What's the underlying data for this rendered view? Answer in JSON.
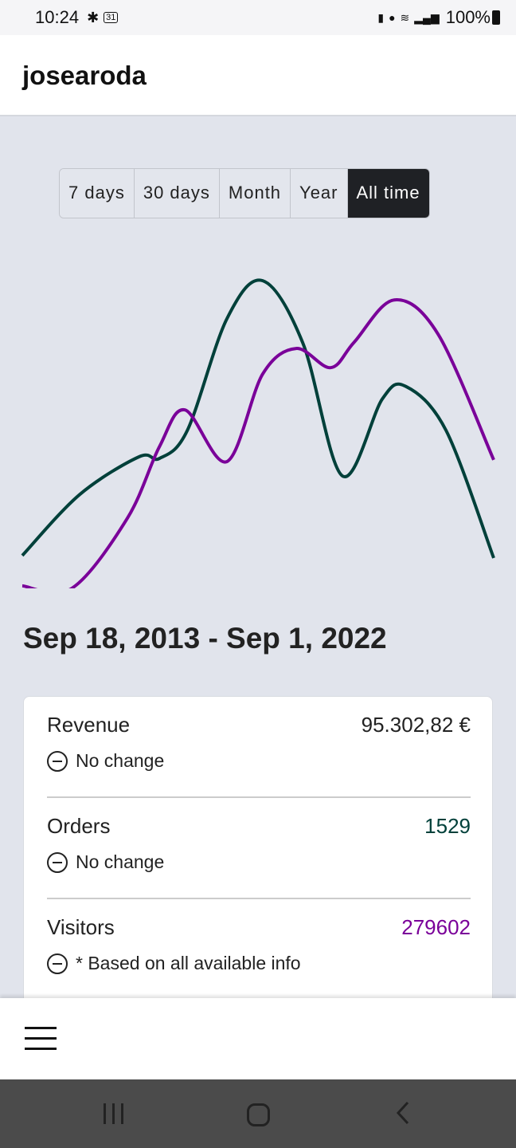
{
  "status_bar": {
    "time": "10:24",
    "battery": "100%",
    "left_icons": [
      "slack-icon",
      "calendar-icon"
    ],
    "calendar_day": "31",
    "right_icons": [
      "battery-saver-icon",
      "location-icon",
      "wifi-icon",
      "signal-icon",
      "battery-icon"
    ]
  },
  "header": {
    "title": "josearoda"
  },
  "range_tabs": [
    {
      "label": "7 days",
      "active": false
    },
    {
      "label": "30 days",
      "active": false
    },
    {
      "label": "Month",
      "active": false
    },
    {
      "label": "Year",
      "active": false
    },
    {
      "label": "All time",
      "active": true
    }
  ],
  "chart_data": {
    "type": "line",
    "grid": false,
    "xlim": [
      0,
      100
    ],
    "ylim": [
      0,
      100
    ],
    "series": [
      {
        "color": "#00403a",
        "x": [
          0,
          12.2,
          24.8,
          29.1,
          35,
          43.4,
          51,
          59.5,
          67.9,
          76.4,
          81.4,
          89.9,
          100
        ],
        "y": [
          9.4,
          26.9,
          37.7,
          37.2,
          45.2,
          77.2,
          88.1,
          70.3,
          32.2,
          54.3,
          57.8,
          45.2,
          8.7
        ]
      },
      {
        "color": "#7a0099",
        "x": [
          0,
          10.5,
          22.3,
          29.1,
          34.5,
          43.4,
          51,
          58.1,
          65.4,
          70.4,
          78.9,
          88.2,
          100
        ],
        "y": [
          0.7,
          0,
          20.1,
          40.6,
          51.1,
          36.3,
          61.4,
          68.7,
          63.2,
          70.5,
          82.6,
          72.8,
          36.8
        ]
      }
    ]
  },
  "date_range": "Sep 18, 2013 - Sep 1, 2022",
  "stats": [
    {
      "label": "Revenue",
      "value": "95.302,82 €",
      "value_color": "#222222",
      "note": "No change"
    },
    {
      "label": "Orders",
      "value": "1529",
      "value_color": "#00403a",
      "note": "No change"
    },
    {
      "label": "Visitors",
      "value": "279602",
      "value_color": "#7a0099",
      "note": "* Based on all available info"
    }
  ]
}
